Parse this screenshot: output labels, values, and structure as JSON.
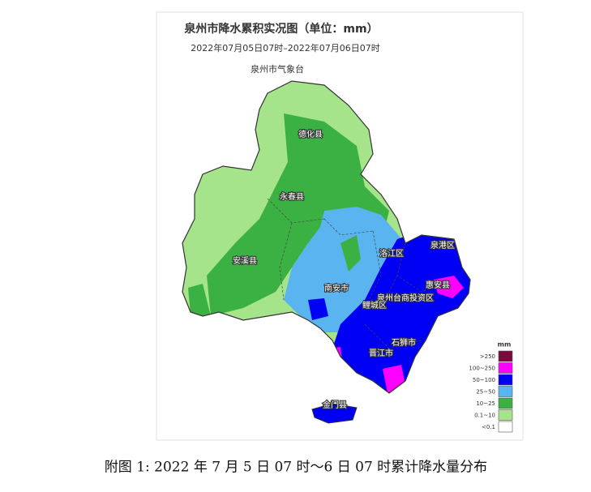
{
  "title": "泉州市降水累积实况图（单位：mm）",
  "subtitle": "2022年07月05日07时–2022年07月06日07时",
  "agency": "泉州市气象台",
  "regions": [
    {
      "label": "德化县"
    },
    {
      "label": "永春县"
    },
    {
      "label": "安溪县"
    },
    {
      "label": "南安市"
    },
    {
      "label": "洛江区"
    },
    {
      "label": "泉港区"
    },
    {
      "label": "惠安县"
    },
    {
      "label": "泉州台商投资区"
    },
    {
      "label": "鲤城区"
    },
    {
      "label": "石狮市"
    },
    {
      "label": "晋江市"
    },
    {
      "label": "金门县"
    }
  ],
  "legend": {
    "title": "mm",
    "items": [
      {
        "label": ">250",
        "color": "#7a0a3c"
      },
      {
        "label": "100~250",
        "color": "#ff00ff"
      },
      {
        "label": "50~100",
        "color": "#0000f5"
      },
      {
        "label": "25~50",
        "color": "#5ab4f0"
      },
      {
        "label": "10~25",
        "color": "#3bb143"
      },
      {
        "label": "0.1~10",
        "color": "#a6e48c"
      },
      {
        "label": "<0.1",
        "color": "#ffffff"
      }
    ]
  },
  "caption": "附图 1: 2022 年 7 月 5 日 07 时～6 日 07 时累计降水量分布"
}
